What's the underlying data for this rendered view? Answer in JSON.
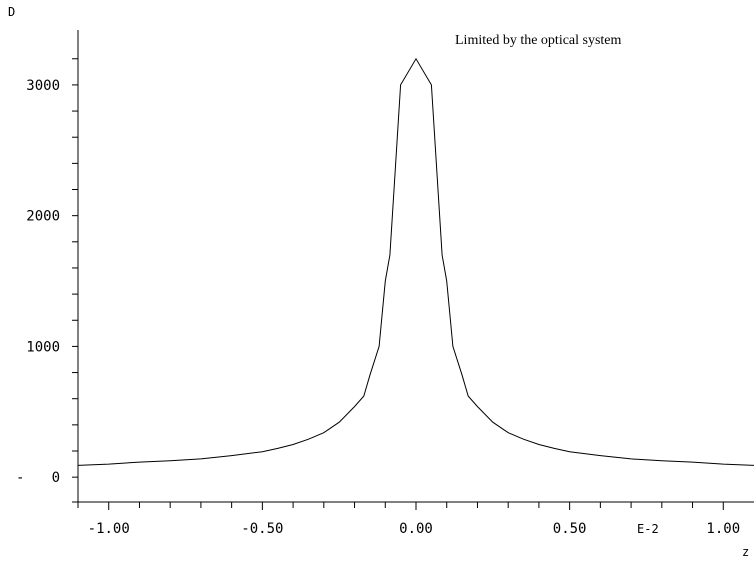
{
  "chart_data": {
    "type": "line",
    "title": "",
    "ylabel": "D",
    "xlabel": "z",
    "x_exponent_label": "E-2",
    "annotation": "Limited by the optical system",
    "xlim": [
      -1.1,
      1.1
    ],
    "ylim": [
      -190,
      3420
    ],
    "x_ticks": [
      {
        "value": -1.0,
        "label": "-1.00"
      },
      {
        "value": -0.5,
        "label": "-0.50"
      },
      {
        "value": 0.0,
        "label": "0.00"
      },
      {
        "value": 0.5,
        "label": "0.50"
      },
      {
        "value": 1.0,
        "label": "1.00"
      }
    ],
    "y_ticks": [
      {
        "value": 0,
        "label": "0",
        "prefix": "-"
      },
      {
        "value": 1000,
        "label": "1000"
      },
      {
        "value": 2000,
        "label": "2000"
      },
      {
        "value": 3000,
        "label": "3000"
      }
    ],
    "series": [
      {
        "name": "",
        "x": [
          -1.1,
          -1.0,
          -0.9,
          -0.8,
          -0.7,
          -0.6,
          -0.5,
          -0.45,
          -0.4,
          -0.35,
          -0.3,
          -0.25,
          -0.2,
          -0.17,
          -0.15,
          -0.12,
          -0.1,
          -0.085,
          -0.05,
          0.0,
          0.05,
          0.085,
          0.1,
          0.12,
          0.15,
          0.17,
          0.2,
          0.25,
          0.3,
          0.35,
          0.4,
          0.45,
          0.5,
          0.6,
          0.7,
          0.8,
          0.9,
          1.0,
          1.1
        ],
        "y": [
          90,
          100,
          115,
          125,
          140,
          165,
          195,
          220,
          250,
          290,
          340,
          420,
          540,
          620,
          780,
          1000,
          1500,
          1700,
          3000,
          3200,
          3000,
          1700,
          1500,
          1000,
          780,
          620,
          540,
          420,
          340,
          290,
          250,
          220,
          195,
          165,
          140,
          125,
          115,
          100,
          90
        ]
      }
    ]
  }
}
